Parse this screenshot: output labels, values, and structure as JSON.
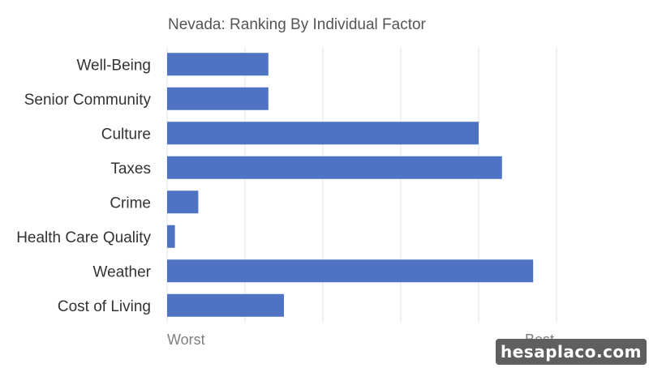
{
  "chart_data": {
    "type": "bar",
    "orientation": "horizontal",
    "title": "Nevada: Ranking By Individual Factor",
    "categories": [
      "Well-Being",
      "Senior Community",
      "Culture",
      "Taxes",
      "Crime",
      "Health Care Quality",
      "Weather",
      "Cost of Living"
    ],
    "values": [
      13,
      13,
      40,
      43,
      4,
      1,
      47,
      15
    ],
    "xlim": [
      0,
      50
    ],
    "x_tick_labels": [
      "Worst",
      "Best"
    ],
    "grid": true,
    "bar_color": "#4e73c2"
  },
  "watermark": "hesaplaco.com"
}
